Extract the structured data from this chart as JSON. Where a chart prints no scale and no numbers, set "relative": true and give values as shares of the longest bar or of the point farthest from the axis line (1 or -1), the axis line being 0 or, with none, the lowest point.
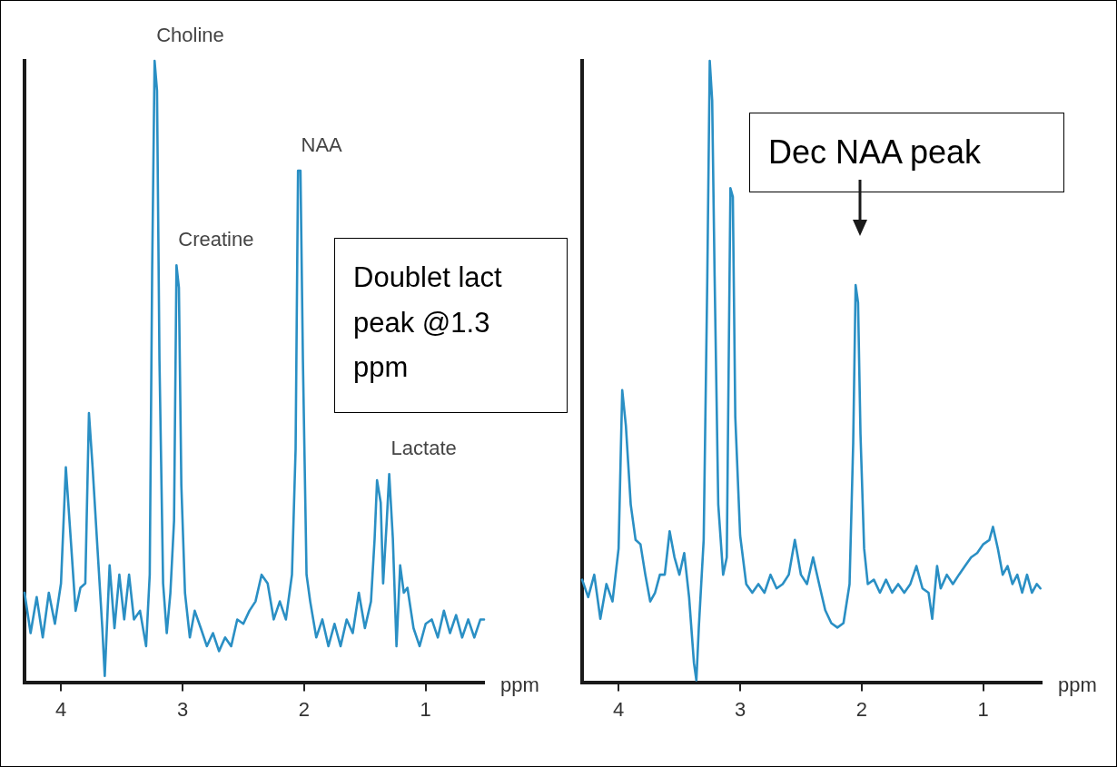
{
  "chart_data": [
    {
      "type": "line",
      "relative": true,
      "xlabel": "ppm",
      "xlim": [
        4.3,
        0.52
      ],
      "xticks": [
        4,
        3,
        2,
        1
      ],
      "grid": false,
      "legend": false,
      "marker": "none",
      "line_style": "solid",
      "annotations": [
        {
          "text": "Choline",
          "x": 3.23,
          "y": 1.0
        },
        {
          "text": "Creatine",
          "x": 3.05,
          "y": 0.671
        },
        {
          "text": "NAA",
          "x": 2.04,
          "y": 0.823
        },
        {
          "text": "Lactate",
          "x": 1.3,
          "y": 0.335
        },
        "Doublet lact peak @1.3 ppm"
      ],
      "series": [
        {
          "color": "#2a8fc4",
          "x": [
            4.3,
            4.25,
            4.2,
            4.15,
            4.1,
            4.05,
            4.0,
            3.96,
            3.92,
            3.88,
            3.84,
            3.8,
            3.77,
            3.74,
            3.7,
            3.66,
            3.64,
            3.6,
            3.56,
            3.52,
            3.48,
            3.44,
            3.4,
            3.35,
            3.3,
            3.27,
            3.25,
            3.23,
            3.21,
            3.19,
            3.16,
            3.13,
            3.1,
            3.07,
            3.05,
            3.03,
            3.01,
            2.98,
            2.94,
            2.9,
            2.85,
            2.8,
            2.75,
            2.7,
            2.65,
            2.6,
            2.55,
            2.5,
            2.45,
            2.4,
            2.35,
            2.3,
            2.25,
            2.2,
            2.15,
            2.1,
            2.07,
            2.05,
            2.03,
            2.01,
            1.98,
            1.95,
            1.9,
            1.85,
            1.8,
            1.75,
            1.7,
            1.65,
            1.6,
            1.55,
            1.5,
            1.45,
            1.42,
            1.4,
            1.37,
            1.35,
            1.32,
            1.3,
            1.27,
            1.24,
            1.21,
            1.18,
            1.15,
            1.1,
            1.05,
            1.0,
            0.95,
            0.9,
            0.85,
            0.8,
            0.75,
            0.7,
            0.65,
            0.6,
            0.55,
            0.52
          ],
          "values": [
            0.144,
            0.079,
            0.137,
            0.072,
            0.144,
            0.094,
            0.159,
            0.346,
            0.231,
            0.115,
            0.152,
            0.159,
            0.433,
            0.346,
            0.216,
            0.087,
            0.01,
            0.188,
            0.087,
            0.173,
            0.101,
            0.173,
            0.101,
            0.115,
            0.058,
            0.173,
            0.664,
            1.0,
            0.952,
            0.519,
            0.159,
            0.079,
            0.144,
            0.26,
            0.671,
            0.635,
            0.317,
            0.144,
            0.072,
            0.115,
            0.087,
            0.058,
            0.079,
            0.05,
            0.072,
            0.058,
            0.101,
            0.094,
            0.115,
            0.13,
            0.173,
            0.159,
            0.101,
            0.13,
            0.101,
            0.173,
            0.375,
            0.823,
            0.823,
            0.519,
            0.173,
            0.13,
            0.072,
            0.101,
            0.058,
            0.094,
            0.058,
            0.101,
            0.079,
            0.144,
            0.087,
            0.13,
            0.231,
            0.325,
            0.289,
            0.159,
            0.26,
            0.335,
            0.231,
            0.058,
            0.188,
            0.144,
            0.152,
            0.087,
            0.058,
            0.094,
            0.101,
            0.072,
            0.115,
            0.079,
            0.108,
            0.072,
            0.101,
            0.072,
            0.101,
            0.101
          ]
        }
      ]
    },
    {
      "type": "line",
      "relative": true,
      "xlabel": "ppm",
      "xlim": [
        4.3,
        0.52
      ],
      "xticks": [
        4,
        3,
        2,
        1
      ],
      "grid": false,
      "legend": false,
      "marker": "none",
      "line_style": "solid",
      "annotations": [
        "Dec NAA peak"
      ],
      "series": [
        {
          "color": "#2a8fc4",
          "x": [
            4.3,
            4.25,
            4.2,
            4.15,
            4.1,
            4.05,
            4.0,
            3.97,
            3.94,
            3.9,
            3.86,
            3.82,
            3.78,
            3.74,
            3.7,
            3.66,
            3.62,
            3.58,
            3.54,
            3.5,
            3.46,
            3.42,
            3.38,
            3.36,
            3.34,
            3.3,
            3.27,
            3.25,
            3.23,
            3.21,
            3.18,
            3.14,
            3.11,
            3.08,
            3.06,
            3.04,
            3.0,
            2.95,
            2.9,
            2.85,
            2.8,
            2.75,
            2.7,
            2.65,
            2.6,
            2.55,
            2.5,
            2.45,
            2.4,
            2.35,
            2.3,
            2.25,
            2.2,
            2.15,
            2.1,
            2.07,
            2.05,
            2.03,
            2.01,
            1.98,
            1.95,
            1.9,
            1.85,
            1.8,
            1.75,
            1.7,
            1.65,
            1.6,
            1.55,
            1.5,
            1.45,
            1.42,
            1.38,
            1.35,
            1.3,
            1.25,
            1.2,
            1.15,
            1.1,
            1.05,
            1.0,
            0.95,
            0.92,
            0.88,
            0.84,
            0.8,
            0.76,
            0.72,
            0.68,
            0.64,
            0.6,
            0.56,
            0.53
          ],
          "values": [
            0.165,
            0.137,
            0.173,
            0.102,
            0.158,
            0.13,
            0.215,
            0.47,
            0.413,
            0.286,
            0.229,
            0.222,
            0.173,
            0.13,
            0.144,
            0.173,
            0.173,
            0.243,
            0.201,
            0.173,
            0.208,
            0.137,
            0.031,
            0.003,
            0.088,
            0.229,
            0.653,
            1.0,
            0.936,
            0.653,
            0.286,
            0.173,
            0.201,
            0.795,
            0.781,
            0.427,
            0.236,
            0.158,
            0.144,
            0.158,
            0.144,
            0.173,
            0.151,
            0.158,
            0.173,
            0.229,
            0.173,
            0.158,
            0.201,
            0.158,
            0.116,
            0.095,
            0.088,
            0.095,
            0.158,
            0.385,
            0.639,
            0.611,
            0.399,
            0.215,
            0.158,
            0.165,
            0.144,
            0.165,
            0.144,
            0.158,
            0.144,
            0.158,
            0.187,
            0.151,
            0.144,
            0.102,
            0.187,
            0.151,
            0.173,
            0.158,
            0.173,
            0.187,
            0.201,
            0.208,
            0.222,
            0.229,
            0.25,
            0.215,
            0.173,
            0.187,
            0.158,
            0.173,
            0.144,
            0.173,
            0.144,
            0.158,
            0.151
          ]
        }
      ]
    }
  ]
}
